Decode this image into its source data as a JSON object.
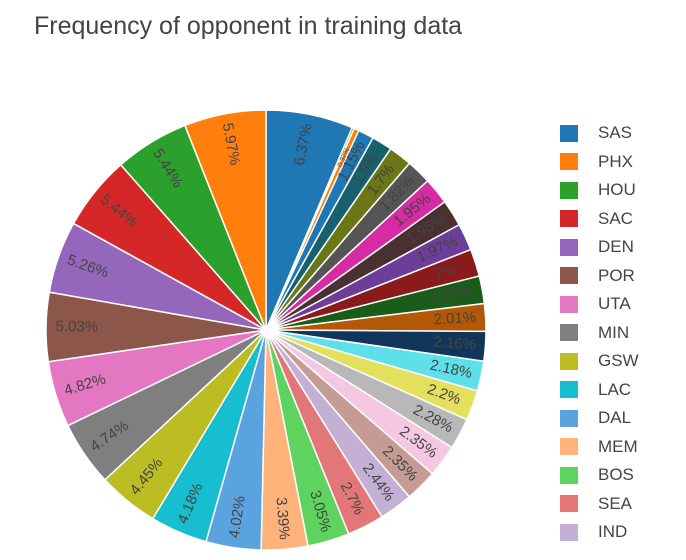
{
  "chart_data": {
    "type": "pie",
    "title": "Frequency of opponent in training data",
    "slices": [
      {
        "name": "SAS",
        "value": 6.37,
        "label": "6.37%",
        "color": "#1f77b4"
      },
      {
        "name": "",
        "value": 0.15,
        "label": "",
        "color": "#2ca02c"
      },
      {
        "name": "",
        "value": 0.37,
        "label": "0.37%",
        "color": "#ff7f0e"
      },
      {
        "name": "",
        "value": 1.15,
        "label": "1.15%",
        "color": "#1f77b4"
      },
      {
        "name": "",
        "value": 1.5,
        "label": "1.5%",
        "color": "#17606e"
      },
      {
        "name": "",
        "value": 1.7,
        "label": "1.7%",
        "color": "#6b7617"
      },
      {
        "name": "",
        "value": 1.82,
        "label": "1.82%",
        "color": "#555555"
      },
      {
        "name": "",
        "value": 1.95,
        "label": "1.95%",
        "color": "#d62ba3"
      },
      {
        "name": "",
        "value": 1.95,
        "label": "1.95%",
        "color": "#4a3030"
      },
      {
        "name": "",
        "value": 1.97,
        "label": "1.97%",
        "color": "#6c3d99"
      },
      {
        "name": "",
        "value": 2.0,
        "label": "2%",
        "color": "#8b1a1a"
      },
      {
        "name": "",
        "value": 2.01,
        "label": "2.01%",
        "color": "#1a5c1a"
      },
      {
        "name": "",
        "value": 2.01,
        "label": "2.01%",
        "color": "#b35806"
      },
      {
        "name": "",
        "value": 2.16,
        "label": "2.16%",
        "color": "#12355b"
      },
      {
        "name": "",
        "value": 2.18,
        "label": "2.18%",
        "color": "#5ee0eb"
      },
      {
        "name": "",
        "value": 2.2,
        "label": "2.2%",
        "color": "#e3e05e"
      },
      {
        "name": "",
        "value": 2.28,
        "label": "2.28%",
        "color": "#b8b8b8"
      },
      {
        "name": "",
        "value": 2.35,
        "label": "2.35%",
        "color": "#f4c7e2"
      },
      {
        "name": "",
        "value": 2.35,
        "label": "2.35%",
        "color": "#c49c94"
      },
      {
        "name": "IND",
        "value": 2.44,
        "label": "2.44%",
        "color": "#c5b0d5"
      },
      {
        "name": "SEA",
        "value": 2.7,
        "label": "2.7%",
        "color": "#e37777"
      },
      {
        "name": "BOS",
        "value": 3.05,
        "label": "3.05%",
        "color": "#5fd35f"
      },
      {
        "name": "MEM",
        "value": 3.39,
        "label": "3.39%",
        "color": "#ffb27a"
      },
      {
        "name": "DAL",
        "value": 4.02,
        "label": "4.02%",
        "color": "#5ba3e0"
      },
      {
        "name": "LAC",
        "value": 4.18,
        "label": "4.18%",
        "color": "#17becf"
      },
      {
        "name": "GSW",
        "value": 4.45,
        "label": "4.45%",
        "color": "#bcbd22"
      },
      {
        "name": "MIN",
        "value": 4.74,
        "label": "4.74%",
        "color": "#7f7f7f"
      },
      {
        "name": "UTA",
        "value": 4.82,
        "label": "4.82%",
        "color": "#e377c2"
      },
      {
        "name": "POR",
        "value": 5.03,
        "label": "5.03%",
        "color": "#8c564b"
      },
      {
        "name": "DEN",
        "value": 5.26,
        "label": "5.26%",
        "color": "#9467bd"
      },
      {
        "name": "SAC",
        "value": 5.44,
        "label": "5.44%",
        "color": "#d62728"
      },
      {
        "name": "HOU",
        "value": 5.44,
        "label": "5.44%",
        "color": "#2ca02c"
      },
      {
        "name": "PHX",
        "value": 5.97,
        "label": "5.97%",
        "color": "#ff7f0e"
      }
    ],
    "legend": {
      "placement": "right",
      "entries": [
        {
          "name": "SAS",
          "color": "#1f77b4"
        },
        {
          "name": "PHX",
          "color": "#ff7f0e"
        },
        {
          "name": "HOU",
          "color": "#2ca02c"
        },
        {
          "name": "SAC",
          "color": "#d62728"
        },
        {
          "name": "DEN",
          "color": "#9467bd"
        },
        {
          "name": "POR",
          "color": "#8c564b"
        },
        {
          "name": "UTA",
          "color": "#e377c2"
        },
        {
          "name": "MIN",
          "color": "#7f7f7f"
        },
        {
          "name": "GSW",
          "color": "#bcbd22"
        },
        {
          "name": "LAC",
          "color": "#17becf"
        },
        {
          "name": "DAL",
          "color": "#5ba3e0"
        },
        {
          "name": "MEM",
          "color": "#ffb27a"
        },
        {
          "name": "BOS",
          "color": "#5fd35f"
        },
        {
          "name": "SEA",
          "color": "#e37777"
        },
        {
          "name": "IND",
          "color": "#c5b0d5"
        }
      ]
    }
  }
}
